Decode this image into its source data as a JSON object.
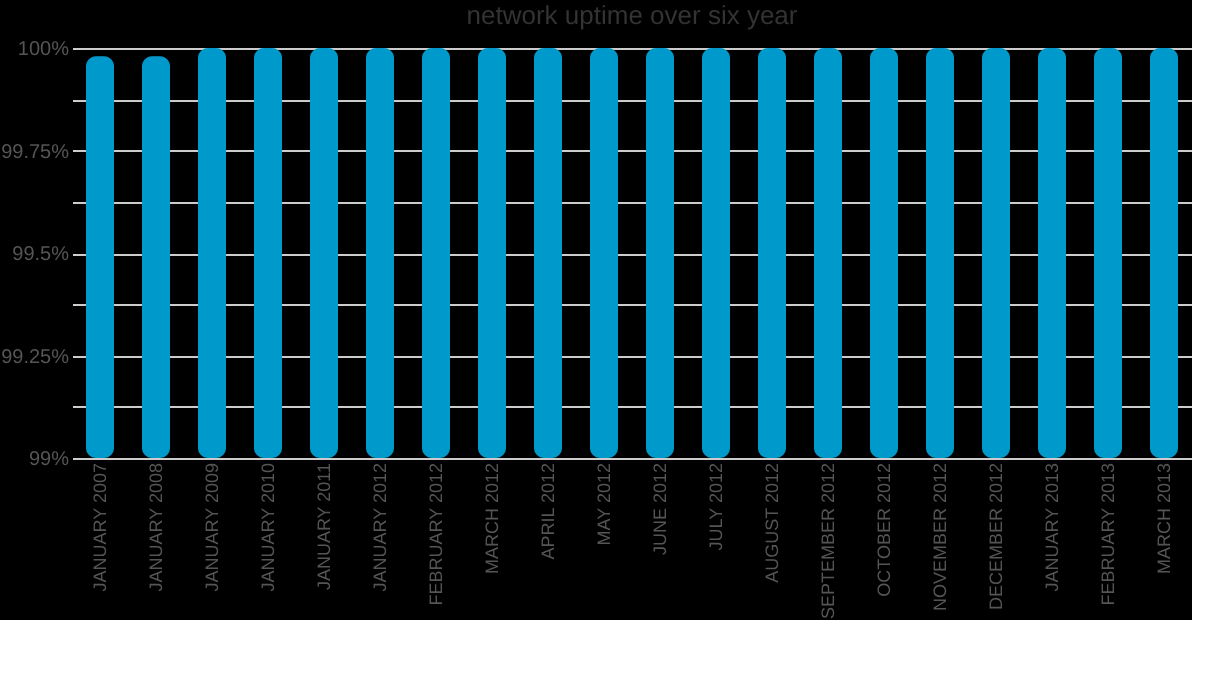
{
  "chart_data": {
    "type": "bar",
    "title": "network uptime over six year",
    "categories": [
      "JANUARY 2007",
      "JANUARY 2008",
      "JANUARY 2009",
      "JANUARY 2010",
      "JANUARY 2011",
      "JANUARY 2012",
      "FEBRUARY 2012",
      "MARCH 2012",
      "APRIL 2012",
      "MAY 2012",
      "JUNE 2012",
      "JULY 2012",
      "AUGUST 2012",
      "SEPTEMBER 2012",
      "OCTOBER 2012",
      "NOVEMBER 2012",
      "DECEMBER 2012",
      "JANUARY 2013",
      "FEBRUARY 2013",
      "MARCH 2013"
    ],
    "values": [
      99.98,
      99.98,
      100,
      100,
      100,
      100,
      100,
      100,
      100,
      100,
      100,
      100,
      100,
      100,
      100,
      100,
      100,
      100,
      100,
      100
    ],
    "color": "#0099cc",
    "ylim": [
      99,
      100
    ],
    "yticks": [
      {
        "value": 99,
        "label": "99%"
      },
      {
        "value": 99.125,
        "label": null
      },
      {
        "value": 99.25,
        "label": "99.25%"
      },
      {
        "value": 99.375,
        "label": null
      },
      {
        "value": 99.5,
        "label": "99.5%"
      },
      {
        "value": 99.625,
        "label": null
      },
      {
        "value": 99.75,
        "label": "99.75%"
      },
      {
        "value": 99.875,
        "label": null
      },
      {
        "value": 100,
        "label": "100%"
      }
    ],
    "grid": "y"
  }
}
